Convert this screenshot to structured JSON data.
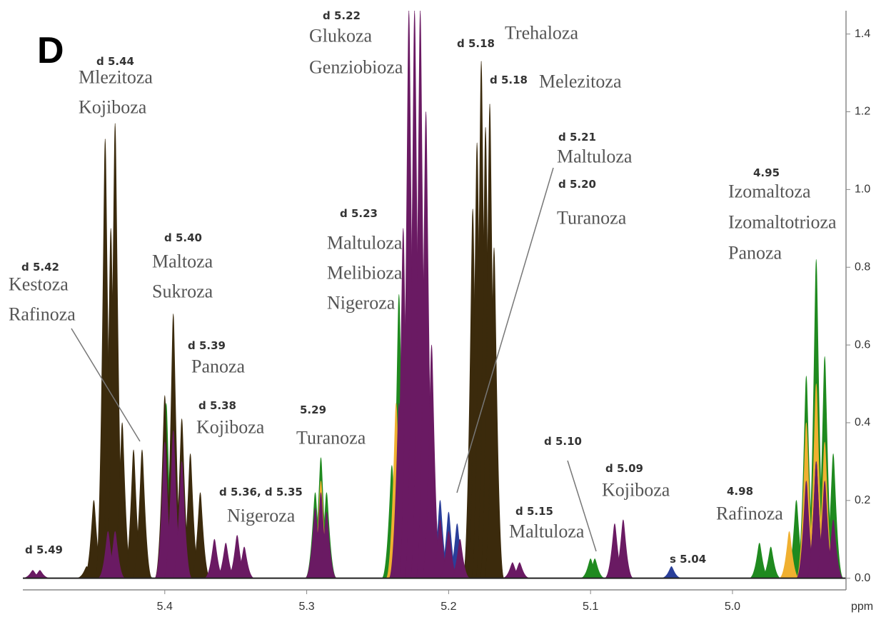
{
  "chart_data": {
    "type": "nmr-spectrum",
    "panel_label": "D",
    "x_label": "ppm",
    "xlim": [
      5.5,
      4.92
    ],
    "xticks": [
      5.4,
      5.3,
      5.2,
      5.1,
      {
        "value": 5.0,
        "label": "5.0"
      }
    ],
    "ylim": [
      -0.03,
      1.46
    ],
    "yticks": [
      {
        "value": 0,
        "label": "0.0"
      },
      0.2,
      0.4,
      0.6,
      0.8,
      {
        "value": 1,
        "label": "1.0"
      },
      1.2,
      1.4
    ],
    "series": [
      {
        "color": "#1f8a1f",
        "x": [
          5.294,
          5.29,
          5.286,
          5.24,
          5.235,
          5.1,
          5.097,
          4.981,
          4.973,
          4.955,
          4.948,
          4.941,
          4.935,
          4.929,
          5.399,
          5.415
        ],
        "values": [
          0.22,
          0.31,
          0.22,
          0.29,
          0.73,
          0.05,
          0.05,
          0.09,
          0.08,
          0.2,
          0.52,
          0.82,
          0.57,
          0.32,
          0.45,
          0.05
        ]
      },
      {
        "color": "#f0b030",
        "x": [
          5.29,
          5.237,
          5.233,
          4.948,
          4.941,
          4.935,
          4.96
        ],
        "values": [
          0.25,
          0.45,
          0.55,
          0.4,
          0.5,
          0.35,
          0.12
        ]
      },
      {
        "color": "#2a3f9a",
        "x": [
          5.206,
          5.2,
          5.194,
          5.043,
          5.395,
          5.29,
          4.941
        ],
        "values": [
          0.2,
          0.17,
          0.14,
          0.03,
          0.4,
          0.2,
          0.3
        ]
      },
      {
        "color": "#3b2a0c",
        "x": [
          5.455,
          5.45,
          5.442,
          5.438,
          5.435,
          5.43,
          5.422,
          5.416,
          5.4,
          5.394,
          5.388,
          5.382,
          5.375,
          5.183,
          5.18,
          5.177,
          5.174,
          5.171,
          5.168
        ],
        "values": [
          0.03,
          0.2,
          1.13,
          0.9,
          1.17,
          0.4,
          0.33,
          0.33,
          0.47,
          0.68,
          0.41,
          0.32,
          0.22,
          0.95,
          1.12,
          1.33,
          1.16,
          1.22,
          0.85
        ]
      },
      {
        "color": "#6a1a63",
        "x": [
          5.493,
          5.488,
          5.44,
          5.435,
          5.4,
          5.394,
          5.388,
          5.365,
          5.357,
          5.349,
          5.344,
          5.294,
          5.29,
          5.286,
          5.235,
          5.232,
          5.228,
          5.224,
          5.22,
          5.216,
          5.212,
          5.206,
          5.2,
          5.192,
          5.155,
          5.15,
          5.083,
          5.077,
          4.948,
          4.941,
          4.935,
          4.929
        ],
        "values": [
          0.02,
          0.02,
          0.12,
          0.12,
          0.35,
          0.38,
          0.3,
          0.1,
          0.09,
          0.11,
          0.08,
          0.18,
          0.22,
          0.17,
          0.45,
          0.9,
          1.46,
          1.46,
          1.46,
          1.2,
          0.6,
          0.15,
          0.12,
          0.1,
          0.04,
          0.04,
          0.14,
          0.15,
          0.25,
          0.3,
          0.25,
          0.15
        ]
      }
    ],
    "annotations": [
      {
        "shift": "d 5.49",
        "compounds": []
      },
      {
        "shift": "d 5.44",
        "compounds": [
          "Mlezitoza",
          "Kojiboza"
        ]
      },
      {
        "shift": "d 5.42",
        "compounds": [
          "Kestoza",
          "Rafinoza"
        ]
      },
      {
        "shift": "d 5.40",
        "compounds": [
          "Maltoza",
          "Sukroza"
        ]
      },
      {
        "shift": "d 5.39",
        "compounds": [
          "Panoza"
        ]
      },
      {
        "shift": "d 5.38",
        "compounds": [
          "Kojiboza"
        ]
      },
      {
        "shift": "d 5.36, d 5.35",
        "compounds": [
          "Nigeroza"
        ]
      },
      {
        "shift": "5.29",
        "compounds": [
          "Turanoza"
        ]
      },
      {
        "shift": "d 5.23",
        "compounds": [
          "Maltuloza",
          "Melibioza",
          "Nigeroza"
        ]
      },
      {
        "shift": "d 5.22",
        "compounds": [
          "Glukoza",
          "Genziobioza"
        ]
      },
      {
        "shift": "d 5.18",
        "compounds": [
          "Trehaloza"
        ]
      },
      {
        "shift": "d 5.18",
        "compounds": [
          "Melezitoza"
        ]
      },
      {
        "shift": "d 5.21",
        "compounds": [
          "Maltuloza"
        ]
      },
      {
        "shift": "d 5.20",
        "compounds": [
          "Turanoza"
        ]
      },
      {
        "shift": "4.95",
        "compounds": [
          "Izomaltoza",
          "Izomaltotrioza",
          "Panoza"
        ]
      },
      {
        "shift": "d 5.15",
        "compounds": [
          "Maltuloza"
        ]
      },
      {
        "shift": "d 5.10",
        "compounds": []
      },
      {
        "shift": "d 5.09",
        "compounds": [
          "Kojiboza"
        ]
      },
      {
        "shift": "s 5.04",
        "compounds": []
      },
      {
        "shift": "4.98",
        "compounds": [
          "Rafinoza"
        ]
      }
    ]
  }
}
